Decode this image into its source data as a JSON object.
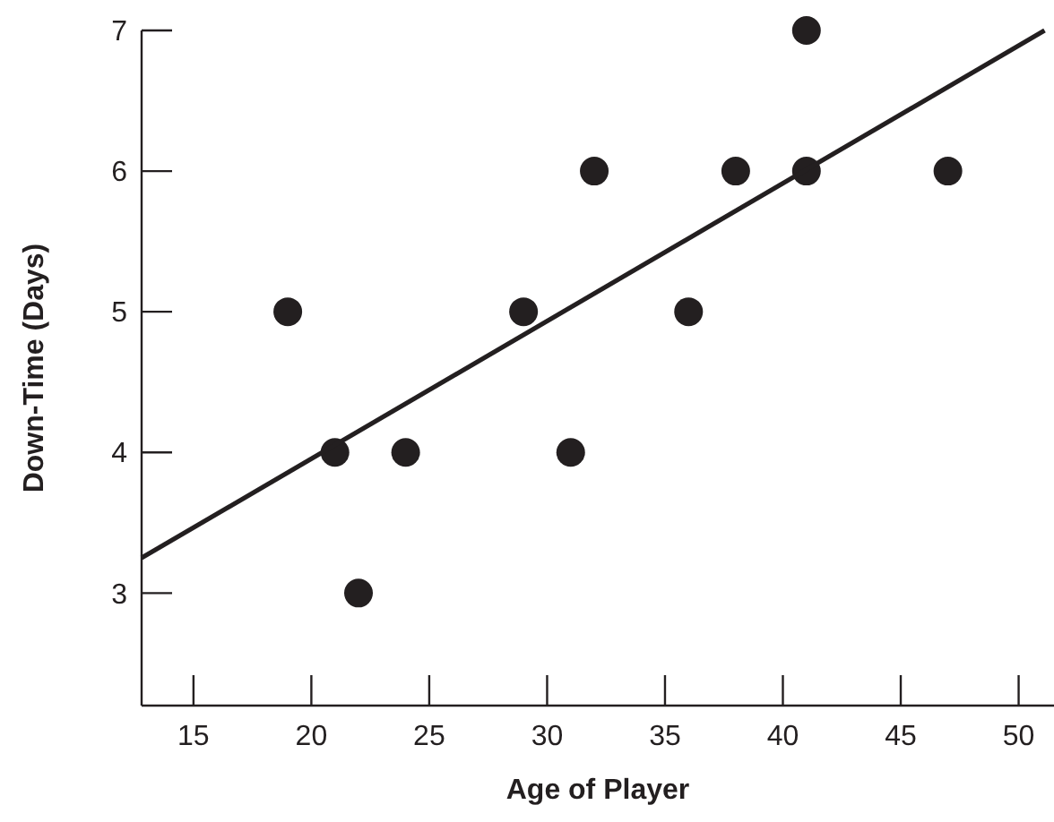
{
  "chart_data": {
    "type": "scatter",
    "xlabel": "Age of Player",
    "ylabel": "Down-Time (Days)",
    "xlim": [
      12.8,
      51.5
    ],
    "ylim": [
      2.2,
      7
    ],
    "xticks": [
      15,
      20,
      25,
      30,
      35,
      40,
      45,
      50
    ],
    "yticks": [
      3,
      4,
      5,
      6,
      7
    ],
    "grid": false,
    "marker": "circle",
    "series": [
      {
        "color": "#231f20",
        "x": [
          19,
          21,
          22,
          24,
          29,
          31,
          32,
          36,
          38,
          41,
          41,
          47
        ],
        "values": [
          5,
          4,
          3,
          4,
          5,
          4,
          6,
          5,
          6,
          7,
          6,
          6
        ]
      },
      {
        "type": "line",
        "color": "#231f20",
        "x": [
          12.8,
          51.1
        ],
        "values": [
          3.25,
          7
        ],
        "marker": "none",
        "line_style": "solid"
      }
    ]
  }
}
